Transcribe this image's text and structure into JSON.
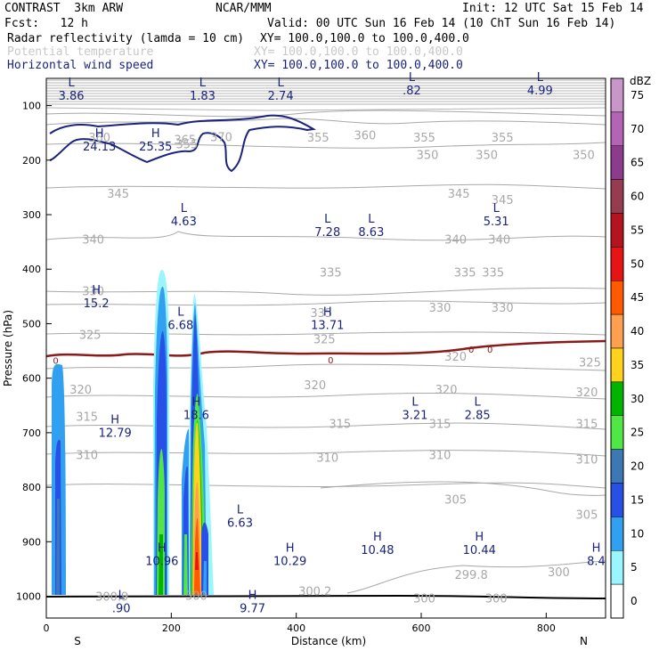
{
  "header": {
    "model": "CONTRAST  3km ARW",
    "center": "NCAR/MMM",
    "init": "Init: 12 UTC Sat 15 Feb 14",
    "fcst": "Fcst:   12 h",
    "valid": "Valid: 00 UTC Sun 16 Feb 14 (10 ChT Sun 16 Feb 14)",
    "field1": "Radar reflectivity (lamda = 10 cm)",
    "field1_xy": "XY= 100.0,100.0 to 100.0,400.0",
    "field2": "Potential temperature",
    "field2_xy": "XY= 100.0,100.0 to 100.0,400.0",
    "field3": "Horizontal wind speed",
    "field3_xy": "XY= 100.0,100.0 to 100.0,400.0"
  },
  "colors": {
    "theta": "#a8a8a8",
    "wind": "#1a237e",
    "zero_line": "#8b1a1a",
    "ground": "#000000"
  },
  "chart_data": {
    "type": "cross-section",
    "xlabel": "Distance (km)",
    "ylabel": "Pressure (hPa)",
    "xlim": [
      0,
      895
    ],
    "ylim_hPa": [
      1040,
      50
    ],
    "xticks": [
      {
        "v": 0,
        "label": "0"
      },
      {
        "v": 200,
        "label": "200"
      },
      {
        "v": 400,
        "label": "400"
      },
      {
        "v": 600,
        "label": "600"
      },
      {
        "v": 800,
        "label": "800"
      }
    ],
    "yticks": [
      {
        "v": 100,
        "label": "100"
      },
      {
        "v": 200,
        "label": "200"
      },
      {
        "v": 300,
        "label": "300"
      },
      {
        "v": 400,
        "label": "400"
      },
      {
        "v": 500,
        "label": "500"
      },
      {
        "v": 600,
        "label": "600"
      },
      {
        "v": 700,
        "label": "700"
      },
      {
        "v": 800,
        "label": "800"
      },
      {
        "v": 900,
        "label": "900"
      },
      {
        "v": 1000,
        "label": "1000"
      }
    ],
    "endpoint_labels": [
      {
        "v": 50,
        "label": "S"
      },
      {
        "v": 860,
        "label": "N"
      }
    ],
    "colorbar": {
      "unit": "dBZ",
      "levels": [
        {
          "v": "75",
          "color": "#c896c8"
        },
        {
          "v": "70",
          "color": "#b464b4"
        },
        {
          "v": "65",
          "color": "#8c3c8c"
        },
        {
          "v": "60",
          "color": "#963c50"
        },
        {
          "v": "55",
          "color": "#b4141e"
        },
        {
          "v": "50",
          "color": "#e61414"
        },
        {
          "v": "45",
          "color": "#ff5a00"
        },
        {
          "v": "40",
          "color": "#ffa050"
        },
        {
          "v": "35",
          "color": "#ffd21e"
        },
        {
          "v": "30",
          "color": "#00b400"
        },
        {
          "v": "25",
          "color": "#50e646"
        },
        {
          "v": "20",
          "color": "#3c78b4"
        },
        {
          "v": "15",
          "color": "#2850e6"
        },
        {
          "v": "10",
          "color": "#32a0f0"
        },
        {
          "v": "5",
          "color": "#9bf5ff"
        },
        {
          "v": "0",
          "color": "#ffffff"
        }
      ]
    },
    "theta_contour_labels": [
      {
        "x": 85,
        "p": 158,
        "t": "360"
      },
      {
        "x": 222,
        "p": 162,
        "t": "365"
      },
      {
        "x": 280,
        "p": 157,
        "t": "370"
      },
      {
        "x": 435,
        "p": 158,
        "t": "355"
      },
      {
        "x": 510,
        "p": 154,
        "t": "360"
      },
      {
        "x": 605,
        "p": 158,
        "t": "355"
      },
      {
        "x": 730,
        "p": 158,
        "t": "355"
      },
      {
        "x": 225,
        "p": 170,
        "t": "355"
      },
      {
        "x": 610,
        "p": 190,
        "t": "350"
      },
      {
        "x": 705,
        "p": 190,
        "t": "350"
      },
      {
        "x": 860,
        "p": 190,
        "t": "350"
      },
      {
        "x": 115,
        "p": 261,
        "t": "345"
      },
      {
        "x": 660,
        "p": 261,
        "t": "345"
      },
      {
        "x": 730,
        "p": 272,
        "t": "345"
      },
      {
        "x": 75,
        "p": 345,
        "t": "340"
      },
      {
        "x": 655,
        "p": 345,
        "t": "340"
      },
      {
        "x": 725,
        "p": 345,
        "t": "340"
      },
      {
        "x": 455,
        "p": 405,
        "t": "335"
      },
      {
        "x": 670,
        "p": 405,
        "t": "335"
      },
      {
        "x": 715,
        "p": 405,
        "t": "335"
      },
      {
        "x": 75,
        "p": 440,
        "t": "330"
      },
      {
        "x": 440,
        "p": 480,
        "t": "335"
      },
      {
        "x": 630,
        "p": 470,
        "t": "330"
      },
      {
        "x": 730,
        "p": 470,
        "t": "330"
      },
      {
        "x": 70,
        "p": 520,
        "t": "325"
      },
      {
        "x": 445,
        "p": 528,
        "t": "325"
      },
      {
        "x": 655,
        "p": 560,
        "t": "320"
      },
      {
        "x": 870,
        "p": 570,
        "t": "325"
      },
      {
        "x": 55,
        "p": 620,
        "t": "320"
      },
      {
        "x": 430,
        "p": 612,
        "t": "320"
      },
      {
        "x": 640,
        "p": 620,
        "t": "320"
      },
      {
        "x": 865,
        "p": 625,
        "t": "320"
      },
      {
        "x": 65,
        "p": 670,
        "t": "315"
      },
      {
        "x": 470,
        "p": 683,
        "t": "315"
      },
      {
        "x": 630,
        "p": 683,
        "t": "315"
      },
      {
        "x": 865,
        "p": 683,
        "t": "315"
      },
      {
        "x": 65,
        "p": 740,
        "t": "310"
      },
      {
        "x": 450,
        "p": 745,
        "t": "310"
      },
      {
        "x": 630,
        "p": 740,
        "t": "310"
      },
      {
        "x": 865,
        "p": 748,
        "t": "310"
      },
      {
        "x": 655,
        "p": 822,
        "t": "305"
      },
      {
        "x": 865,
        "p": 850,
        "t": "305"
      },
      {
        "x": 105,
        "p": 1000,
        "t": "300.9"
      },
      {
        "x": 240,
        "p": 998,
        "t": "300"
      },
      {
        "x": 430,
        "p": 990,
        "t": "300.2"
      },
      {
        "x": 680,
        "p": 960,
        "t": "299.8"
      },
      {
        "x": 820,
        "p": 955,
        "t": "300"
      },
      {
        "x": 605,
        "p": 1003,
        "t": "300"
      },
      {
        "x": 720,
        "p": 1003,
        "t": "300"
      }
    ],
    "wind_extrema": [
      {
        "x": 40,
        "p": 65,
        "type": "L",
        "value": "3.86"
      },
      {
        "x": 250,
        "p": 65,
        "type": "L",
        "value": "1.83"
      },
      {
        "x": 375,
        "p": 65,
        "type": "L",
        "value": "2.74"
      },
      {
        "x": 585,
        "p": 55,
        "type": "L",
        "value": ".82"
      },
      {
        "x": 790,
        "p": 55,
        "type": "L",
        "value": "4.99"
      },
      {
        "x": 85,
        "p": 158,
        "type": "H",
        "value": "24.13"
      },
      {
        "x": 175,
        "p": 158,
        "type": "H",
        "value": "25.35"
      },
      {
        "x": 220,
        "p": 295,
        "type": "L",
        "value": "4.63"
      },
      {
        "x": 450,
        "p": 315,
        "type": "L",
        "value": "7.28"
      },
      {
        "x": 520,
        "p": 315,
        "type": "L",
        "value": "8.63"
      },
      {
        "x": 720,
        "p": 295,
        "type": "L",
        "value": "5.31"
      },
      {
        "x": 80,
        "p": 445,
        "type": "H",
        "value": "15.2"
      },
      {
        "x": 215,
        "p": 485,
        "type": "L",
        "value": "6.68"
      },
      {
        "x": 450,
        "p": 485,
        "type": "H",
        "value": "13.71"
      },
      {
        "x": 240,
        "p": 650,
        "type": "H",
        "value": "18.6"
      },
      {
        "x": 590,
        "p": 650,
        "type": "L",
        "value": "3.21"
      },
      {
        "x": 690,
        "p": 650,
        "type": "L",
        "value": "2.85"
      },
      {
        "x": 110,
        "p": 683,
        "type": "H",
        "value": "12.79"
      },
      {
        "x": 310,
        "p": 848,
        "type": "L",
        "value": "6.63"
      },
      {
        "x": 530,
        "p": 898,
        "type": "H",
        "value": "10.48"
      },
      {
        "x": 693,
        "p": 898,
        "type": "H",
        "value": "10.44"
      },
      {
        "x": 185,
        "p": 918,
        "type": "H",
        "value": "10.96"
      },
      {
        "x": 390,
        "p": 918,
        "type": "H",
        "value": "10.29"
      },
      {
        "x": 880,
        "p": 918,
        "type": "H",
        "value": "8.4"
      },
      {
        "x": 120,
        "p": 1005,
        "type": "L",
        "value": ".90"
      },
      {
        "x": 330,
        "p": 1005,
        "type": "H",
        "value": "9.77"
      }
    ],
    "zero_line_labels": [
      {
        "x": 15,
        "p": 567,
        "t": "0"
      },
      {
        "x": 455,
        "p": 566,
        "t": "0"
      },
      {
        "x": 680,
        "p": 547,
        "t": "0"
      },
      {
        "x": 710,
        "p": 547,
        "t": "0"
      }
    ]
  }
}
